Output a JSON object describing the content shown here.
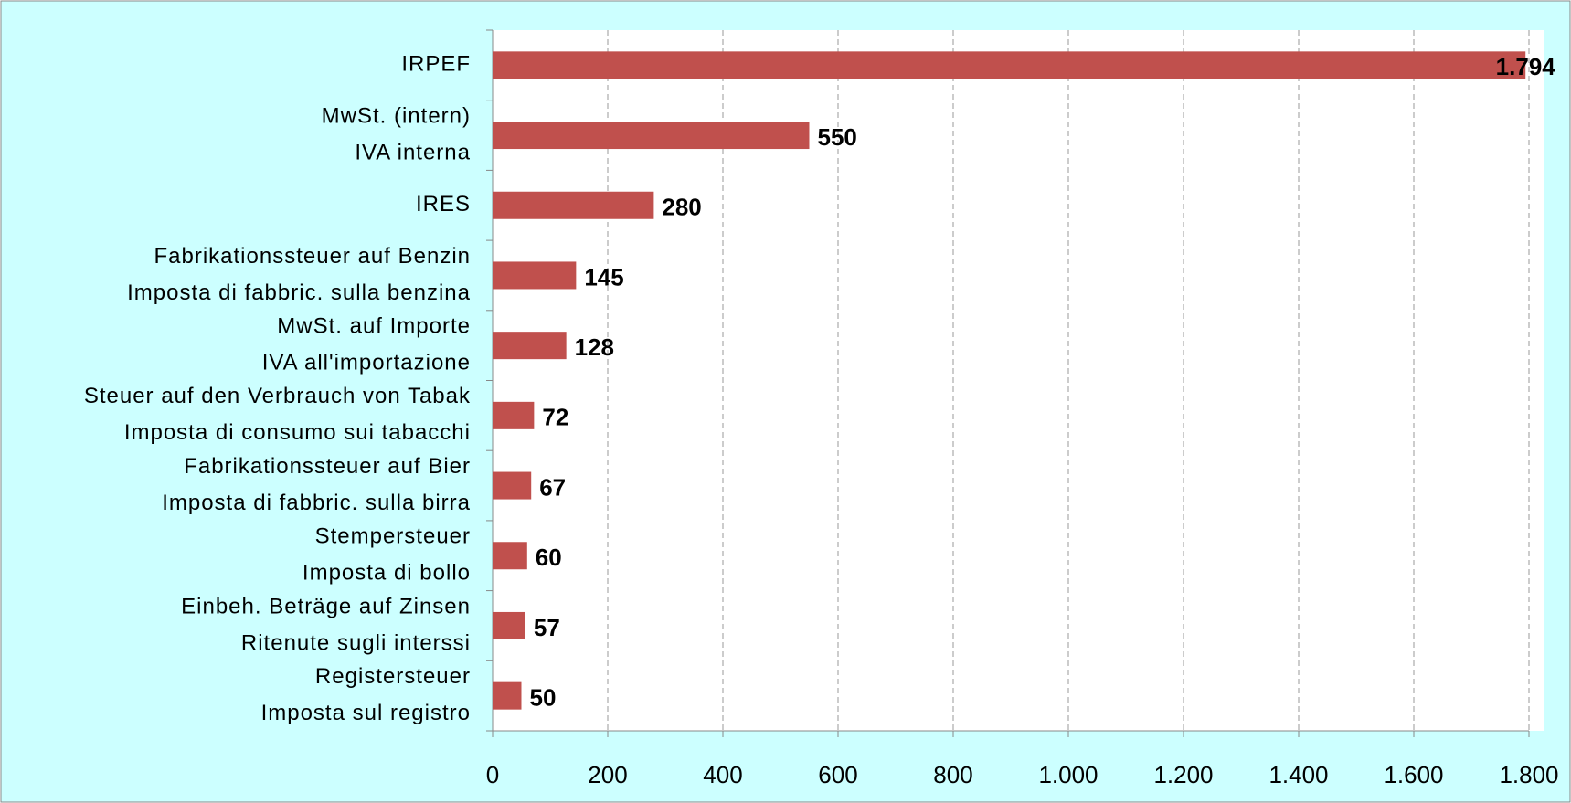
{
  "chart_data": {
    "type": "hbar",
    "categories": [
      [
        "IRPEF"
      ],
      [
        "MwSt. (intern)",
        "IVA interna"
      ],
      [
        "IRES"
      ],
      [
        "Fabrikationssteuer auf Benzin",
        "Imposta di fabbric. sulla benzina"
      ],
      [
        "MwSt. auf Importe",
        "IVA all'importazione"
      ],
      [
        "Steuer auf den Verbrauch von Tabak",
        "Imposta di consumo sui tabacchi"
      ],
      [
        "Fabrikationssteuer auf Bier",
        "Imposta di fabbric. sulla birra"
      ],
      [
        "Stempersteuer",
        "Imposta di bollo"
      ],
      [
        "Einbeh. Beträge auf Zinsen",
        "Ritenute sugli interssi"
      ],
      [
        "Registersteuer",
        "Imposta sul registro"
      ]
    ],
    "values": [
      1794,
      550,
      280,
      145,
      128,
      72,
      67,
      60,
      57,
      50
    ],
    "value_labels": [
      "1.794",
      "550",
      "280",
      "145",
      "128",
      "72",
      "67",
      "60",
      "57",
      "50"
    ],
    "color": "#c0504d",
    "xlim": [
      0,
      1800
    ],
    "xticks": [
      0,
      200,
      400,
      600,
      800,
      {
        "value": 1000,
        "label": "1.000"
      },
      {
        "value": 1200,
        "label": "1.200"
      },
      {
        "value": 1400,
        "label": "1.400"
      },
      {
        "value": 1600,
        "label": "1.600"
      },
      {
        "value": 1800,
        "label": "1.800"
      }
    ],
    "grid": true
  }
}
